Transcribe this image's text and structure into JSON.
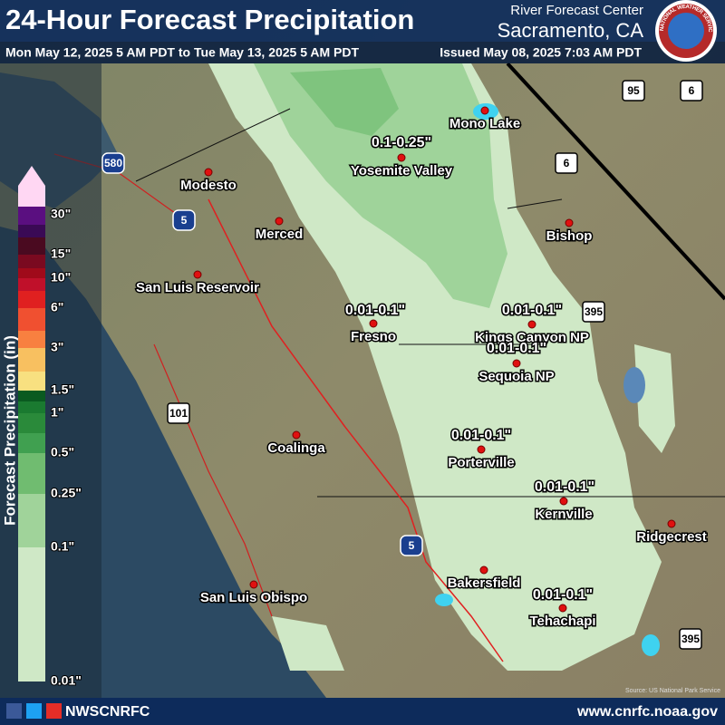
{
  "header": {
    "title": "24-Hour Forecast Precipitation",
    "office_line1": "River Forecast Center",
    "office_line2": "Sacramento, CA",
    "valid_period": "Mon May 12, 2025 5 AM PDT to Tue May 13, 2025 5 AM PDT",
    "issued": "Issued May 08, 2025 7:03 AM PDT"
  },
  "logo": {
    "text": "NATIONAL WEATHER SERVICE"
  },
  "legend": {
    "title": "Forecast Precipitation (in)",
    "labels": [
      "30\"",
      "15\"",
      "10\"",
      "6\"",
      "3\"",
      "1.5\"",
      "1\"",
      "0.5\"",
      "0.25\"",
      "0.1\"",
      "0.01\""
    ]
  },
  "map": {
    "cities": [
      "Modesto",
      "Merced",
      "San Luis Reservoir",
      "Yosemite Valley",
      "Mono Lake",
      "Bishop",
      "Fresno",
      "Kings Canyon NP",
      "Sequoia NP",
      "Coalinga",
      "Porterville",
      "Kernville",
      "Ridgecrest",
      "Bakersfield",
      "San Luis Obispo",
      "Tehachapi"
    ],
    "amount_labels": [
      "0.1-0.25\"",
      "0.01-0.1\"",
      "0.01-0.1\"",
      "0.01-0.1\"",
      "0.01-0.1\"",
      "0.01-0.1\"",
      "0.01-0.1\""
    ],
    "highways": [
      "580",
      "5",
      "5",
      "101",
      "95",
      "6",
      "6",
      "395",
      "395"
    ],
    "source": "Source: US National Park Service"
  },
  "footer": {
    "social": "NWSCNRFC",
    "website": "www.cnrfc.noaa.gov"
  }
}
